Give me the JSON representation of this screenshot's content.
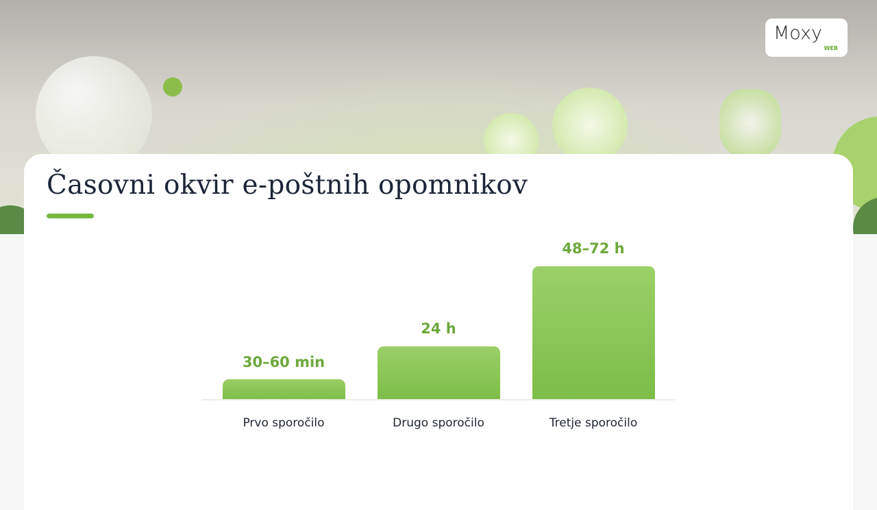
{
  "logo": {
    "name": "Moxy",
    "tag": "WEB"
  },
  "title": "Časovni okvir e-poštnih opomnikov",
  "bars": [
    {
      "label": "30–60 min",
      "category": "Prvo sporočilo"
    },
    {
      "label": "24 h",
      "category": "Drugo sporočilo"
    },
    {
      "label": "48–72 h",
      "category": "Tretje sporočilo"
    }
  ]
}
